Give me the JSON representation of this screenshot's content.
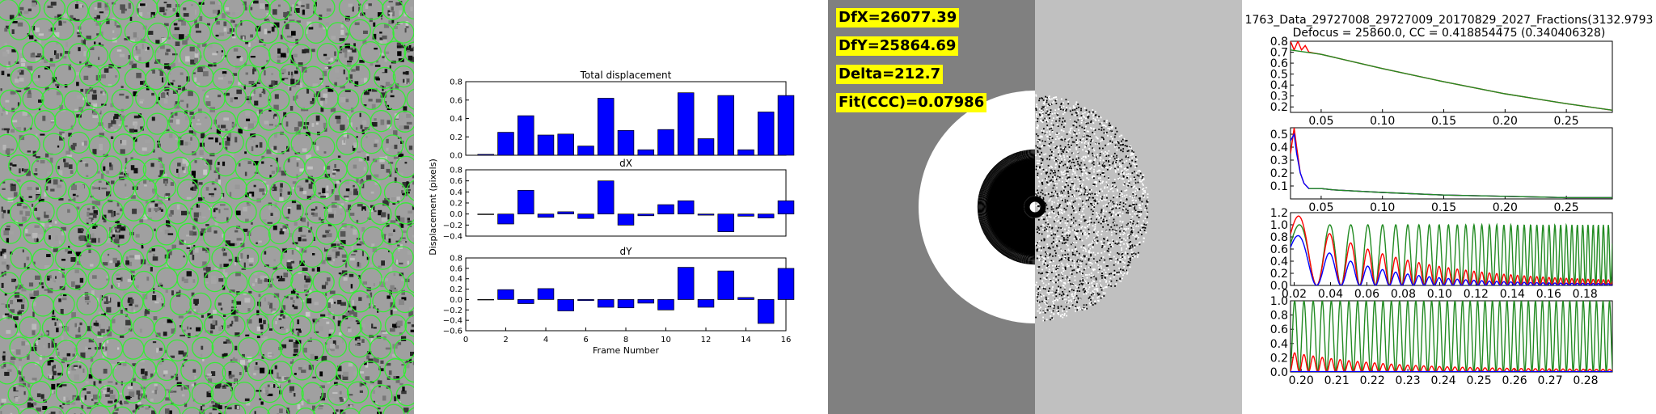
{
  "micrograph": {
    "particle_color": "#33ee33"
  },
  "motion": {
    "ylabel": "Displacement (pixels)",
    "xlabel": "Frame Number",
    "bar_color": "#0000ff"
  },
  "ctf_image": {
    "labels": {
      "dfx": "DfX=26077.39",
      "dfy": "DfY=25864.69",
      "delta": "Delta=212.7",
      "fit": "Fit(CCC)=0.07986"
    }
  },
  "ctf_fit": {
    "title_line1": "1763_Data_29727008_29727009_20170829_2027_Fractions(3132.9793",
    "title_line2": "Defocus = 25860.0, CC = 0.418854475 (0.340406328)"
  },
  "chart_data": [
    {
      "type": "bar",
      "title": "Total displacement",
      "ylabel": "Displacement (pixels)",
      "x": [
        1,
        2,
        3,
        4,
        5,
        6,
        7,
        8,
        9,
        10,
        11,
        12,
        13,
        14,
        15,
        16
      ],
      "values": [
        0.01,
        0.25,
        0.43,
        0.22,
        0.23,
        0.1,
        0.62,
        0.27,
        0.06,
        0.28,
        0.68,
        0.18,
        0.65,
        0.06,
        0.47,
        0.65
      ],
      "xlim": [
        0,
        16
      ],
      "ylim": [
        0,
        0.8
      ],
      "yticks": [
        "0.0",
        "0.2",
        "0.4",
        "0.6",
        "0.8"
      ]
    },
    {
      "type": "bar",
      "title": "dX",
      "x": [
        1,
        2,
        3,
        4,
        5,
        6,
        7,
        8,
        9,
        10,
        11,
        12,
        13,
        14,
        15,
        16
      ],
      "values": [
        -0.01,
        -0.18,
        0.43,
        -0.06,
        0.04,
        -0.08,
        0.6,
        -0.2,
        -0.03,
        0.17,
        0.24,
        -0.02,
        -0.32,
        -0.04,
        -0.07,
        0.24
      ],
      "xlim": [
        0,
        16
      ],
      "ylim": [
        -0.4,
        0.8
      ],
      "yticks": [
        "−0.4",
        "−0.2",
        "0.0",
        "0.2",
        "0.4",
        "0.6",
        "0.8"
      ]
    },
    {
      "type": "bar",
      "title": "dY",
      "xlabel": "Frame Number",
      "x": [
        1,
        2,
        3,
        4,
        5,
        6,
        7,
        8,
        9,
        10,
        11,
        12,
        13,
        14,
        15,
        16
      ],
      "values": [
        0.0,
        0.19,
        -0.08,
        0.21,
        -0.22,
        -0.02,
        -0.15,
        -0.16,
        -0.07,
        -0.2,
        0.62,
        -0.15,
        0.55,
        0.04,
        -0.46,
        0.6
      ],
      "xlim": [
        0,
        16
      ],
      "ylim": [
        -0.6,
        0.8
      ],
      "yticks": [
        "−0.6",
        "−0.4",
        "−0.2",
        "0.0",
        "0.2",
        "0.4",
        "0.6",
        "0.8"
      ],
      "xticks": [
        "0",
        "2",
        "4",
        "6",
        "8",
        "10",
        "12",
        "14",
        "16"
      ]
    },
    {
      "type": "line",
      "xlim": [
        0.025,
        0.2875
      ],
      "ylim": [
        0.15,
        0.8
      ],
      "xticks": [
        "0.05",
        "0.10",
        "0.15",
        "0.20",
        "0.25"
      ],
      "yticks": [
        "0.2",
        "0.3",
        "0.4",
        "0.5",
        "0.6",
        "0.7",
        "0.8"
      ],
      "series": [
        {
          "color": "#ff0000",
          "x": [
            0.025,
            0.028,
            0.031,
            0.034,
            0.037,
            0.04,
            0.045,
            0.05,
            0.1,
            0.15,
            0.2,
            0.25,
            0.2875
          ],
          "y": [
            0.8,
            0.72,
            0.8,
            0.72,
            0.76,
            0.7,
            0.69,
            0.68,
            0.55,
            0.43,
            0.32,
            0.23,
            0.17
          ]
        },
        {
          "color": "#228b22",
          "x": [
            0.025,
            0.05,
            0.1,
            0.15,
            0.2,
            0.25,
            0.2875
          ],
          "y": [
            0.72,
            0.68,
            0.55,
            0.43,
            0.32,
            0.23,
            0.17
          ]
        }
      ]
    },
    {
      "type": "line",
      "xlim": [
        0.025,
        0.2875
      ],
      "ylim": [
        0.0,
        0.55
      ],
      "xticks": [
        "0.05",
        "0.10",
        "0.15",
        "0.20",
        "0.25"
      ],
      "yticks": [
        "0.1",
        "0.2",
        "0.3",
        "0.4",
        "0.5"
      ],
      "series": [
        {
          "color": "#ff0000",
          "x": [
            0.025,
            0.028,
            0.03,
            0.033,
            0.036,
            0.04,
            0.05,
            0.06,
            0.08,
            0.1,
            0.15,
            0.2,
            0.25,
            0.2875
          ],
          "y": [
            0.35,
            0.55,
            0.4,
            0.2,
            0.12,
            0.08,
            0.08,
            0.07,
            0.06,
            0.05,
            0.03,
            0.02,
            0.01,
            0.01
          ]
        },
        {
          "color": "#0000ff",
          "x": [
            0.025,
            0.028,
            0.03,
            0.033,
            0.036,
            0.04,
            0.05,
            0.06,
            0.08,
            0.1,
            0.15,
            0.2,
            0.25,
            0.2875
          ],
          "y": [
            0.45,
            0.5,
            0.35,
            0.2,
            0.12,
            0.08,
            0.08,
            0.07,
            0.06,
            0.05,
            0.03,
            0.02,
            0.01,
            0.01
          ]
        },
        {
          "color": "#228b22",
          "x": [
            0.04,
            0.05,
            0.06,
            0.08,
            0.1,
            0.15,
            0.2,
            0.25,
            0.2875
          ],
          "y": [
            0.08,
            0.08,
            0.07,
            0.06,
            0.05,
            0.03,
            0.02,
            0.01,
            0.01
          ]
        }
      ]
    },
    {
      "type": "line",
      "xlim": [
        0.018,
        0.195
      ],
      "ylim": [
        0.0,
        1.2
      ],
      "xticks": [
        "0.02",
        "0.04",
        "0.06",
        "0.08",
        "0.10",
        "0.12",
        "0.14",
        "0.16",
        "0.18"
      ],
      "yticks": [
        "0.0",
        "0.2",
        "0.4",
        "0.6",
        "0.8",
        "1.0",
        "1.2"
      ],
      "series": [
        {
          "color": "#228b22",
          "function": "oscillation"
        },
        {
          "color": "#ff0000",
          "function": "decaying-oscillation"
        },
        {
          "color": "#0000ff",
          "function": "decaying-oscillation"
        }
      ]
    },
    {
      "type": "line",
      "xlim": [
        0.197,
        0.2875
      ],
      "ylim": [
        0.0,
        1.0
      ],
      "xticks": [
        "0.20",
        "0.21",
        "0.22",
        "0.23",
        "0.24",
        "0.25",
        "0.26",
        "0.27",
        "0.28"
      ],
      "yticks": [
        "0.0",
        "0.2",
        "0.4",
        "0.6",
        "0.8",
        "1.0"
      ],
      "series": [
        {
          "color": "#228b22",
          "function": "oscillation"
        },
        {
          "color": "#ff0000",
          "function": "weak-oscillation"
        },
        {
          "color": "#0000ff",
          "function": "flat"
        }
      ]
    }
  ]
}
